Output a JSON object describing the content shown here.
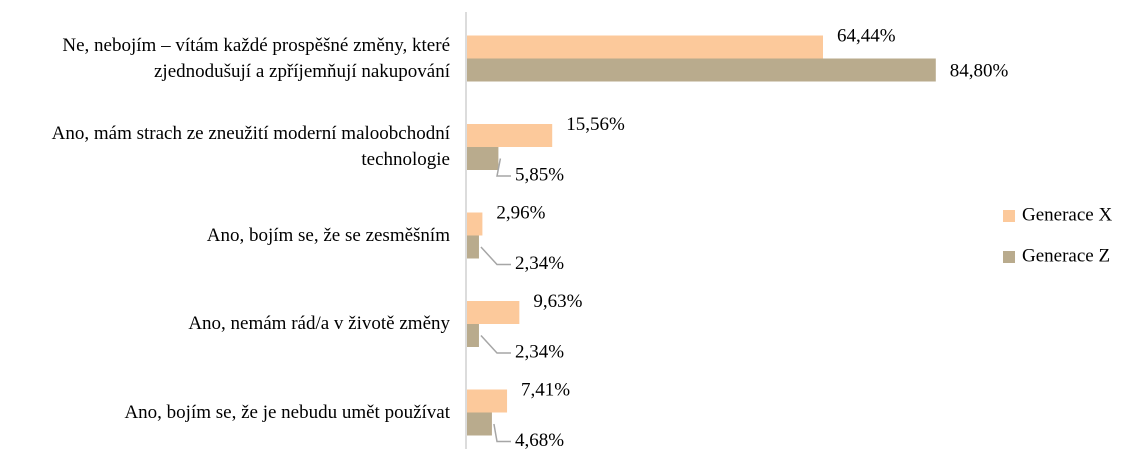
{
  "chart_data": {
    "type": "bar",
    "orientation": "horizontal",
    "categories": [
      "Ne, nebojím – vítám každé prospěšné změny, které zjednodušují a zpříjemňují nakupování",
      "Ano, mám strach ze zneužití moderní maloobchodní technologie",
      "Ano, bojím se, že se zesměšním",
      "Ano, nemám rád/a v životě změny",
      "Ano, bojím se, že je nebudu umět používat"
    ],
    "series": [
      {
        "name": "Generace X",
        "color": "#fcc99b",
        "values": [
          64.44,
          15.56,
          2.96,
          9.63,
          7.41
        ],
        "value_labels": [
          "64,44%",
          "15,56%",
          "2,96%",
          "9,63%",
          "7,41%"
        ]
      },
      {
        "name": "Generace Z",
        "color": "#b9ab8d",
        "values": [
          84.8,
          5.85,
          2.34,
          2.34,
          4.68
        ],
        "value_labels": [
          "84,80%",
          "5,85%",
          "2,34%",
          "2,34%",
          "4,68%"
        ]
      }
    ],
    "legend": "right"
  }
}
